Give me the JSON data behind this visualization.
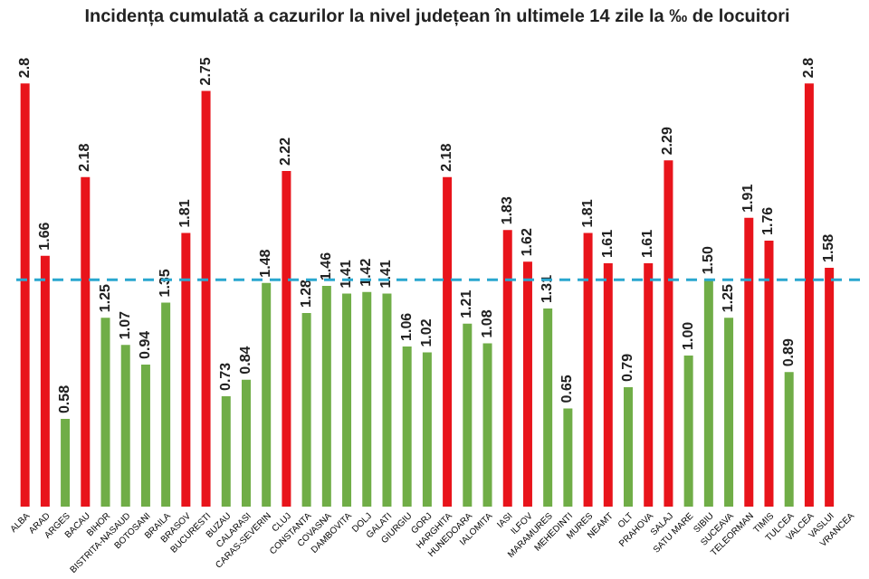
{
  "chart_data": {
    "type": "bar",
    "title": "Incidența cumulată a cazurilor la nivel județean în ultimele 14 zile la ‰ de locuitori",
    "categories": [
      "ALBA",
      "ARAD",
      "ARGES",
      "BACAU",
      "BIHOR",
      "BISTRITA-NASAUD",
      "BOTOSANI",
      "BRAILA",
      "BRASOV",
      "BUCURESTI",
      "BUZAU",
      "CALARASI",
      "CARAS-SEVERIN",
      "CLUJ",
      "CONSTANTA",
      "COVASNA",
      "DAMBOVITA",
      "DOLJ",
      "GALATI",
      "GIURGIU",
      "GORJ",
      "HARGHITA",
      "HUNEDOARA",
      "IALOMITA",
      "IASI",
      "ILFOV",
      "MARAMURES",
      "MEHEDINTI",
      "MURES",
      "NEAMT",
      "OLT",
      "PRAHOVA",
      "SALAJ",
      "SATU MARE",
      "SIBIU",
      "SUCEAVA",
      "TELEORMAN",
      "TIMIS",
      "TULCEA",
      "VALCEA",
      "VASLUI",
      "VRANCEA"
    ],
    "values": [
      2.8,
      1.66,
      0.58,
      2.18,
      1.25,
      1.07,
      0.94,
      1.35,
      1.81,
      2.75,
      0.73,
      0.84,
      1.48,
      2.22,
      1.28,
      1.46,
      1.41,
      1.42,
      1.41,
      1.06,
      1.02,
      2.18,
      1.21,
      1.08,
      1.83,
      1.62,
      1.31,
      0.65,
      1.81,
      1.61,
      0.79,
      1.61,
      2.29,
      1.0,
      1.5,
      1.25,
      1.91,
      1.76,
      0.89,
      2.8,
      1.58,
      null
    ],
    "value_labels": [
      "2.8",
      "1.66",
      "0.58",
      "2.18",
      "1.25",
      "1.07",
      "0.94",
      "1.35",
      "1.81",
      "2.75",
      "0.73",
      "0.84",
      "1.48",
      "2.22",
      "1.28",
      "1.46",
      "1.41",
      "1.42",
      "1.41",
      "1.06",
      "1.02",
      "2.18",
      "1.21",
      "1.08",
      "1.83",
      "1.62",
      "1.31",
      "0.65",
      "1.81",
      "1.61",
      "0.79",
      "1.61",
      "2.29",
      "1.00",
      "1.50",
      "1.25",
      "1.91",
      "1.76",
      "0.89",
      "2.8",
      "1.58",
      null
    ],
    "colors": [
      "#e8141b",
      "#e8141b",
      "#70ad47",
      "#e8141b",
      "#70ad47",
      "#70ad47",
      "#70ad47",
      "#70ad47",
      "#e8141b",
      "#e8141b",
      "#70ad47",
      "#70ad47",
      "#70ad47",
      "#e8141b",
      "#70ad47",
      "#70ad47",
      "#70ad47",
      "#70ad47",
      "#70ad47",
      "#70ad47",
      "#70ad47",
      "#e8141b",
      "#70ad47",
      "#70ad47",
      "#e8141b",
      "#e8141b",
      "#70ad47",
      "#70ad47",
      "#e8141b",
      "#e8141b",
      "#70ad47",
      "#e8141b",
      "#e8141b",
      "#70ad47",
      "#70ad47",
      "#70ad47",
      "#e8141b",
      "#e8141b",
      "#70ad47",
      "#e8141b",
      "#e8141b",
      null
    ],
    "ref_lines": [
      {
        "axis": "y",
        "value": 1.5,
        "color": "#2aa7cf",
        "line_style": "dashed"
      }
    ],
    "grid": false
  }
}
